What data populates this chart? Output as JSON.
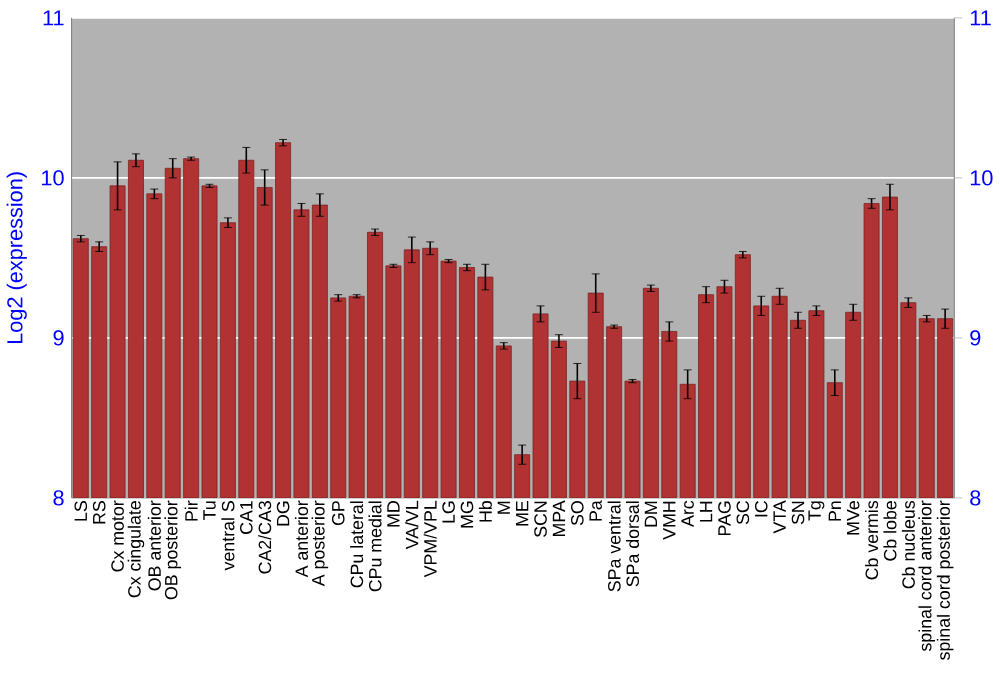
{
  "chart_data": {
    "type": "bar",
    "ylabel": "Log2 (expression)",
    "categories": [
      "LS",
      "RS",
      "Cx motor",
      "Cx cingulate",
      "OB anterior",
      "OB posterior",
      "Pir",
      "Tu",
      "ventral S",
      "CA1",
      "CA2/CA3",
      "DG",
      "A anterior",
      "A posterior",
      "GP",
      "CPu lateral",
      "CPu medial",
      "MD",
      "VA/VL",
      "VPM/VPL",
      "LG",
      "MG",
      "Hb",
      "M",
      "ME",
      "SCN",
      "MPA",
      "SO",
      "Pa",
      "SPa ventral",
      "SPa dorsal",
      "DM",
      "VMH",
      "Arc",
      "LH",
      "PAG",
      "SC",
      "IC",
      "VTA",
      "SN",
      "Tg",
      "Pn",
      "MVe",
      "Cb vermis",
      "Cb lobe",
      "Cb nucleus",
      "spinal cord anterior",
      "spinal cord posterior"
    ],
    "values": [
      9.62,
      9.57,
      9.95,
      10.11,
      9.9,
      10.06,
      10.12,
      9.95,
      9.72,
      10.11,
      9.94,
      10.22,
      9.8,
      9.83,
      9.25,
      9.26,
      9.66,
      9.45,
      9.55,
      9.56,
      9.48,
      9.44,
      9.38,
      8.95,
      8.27,
      9.15,
      8.98,
      8.73,
      9.28,
      9.07,
      8.73,
      9.31,
      9.04,
      8.71,
      9.27,
      9.32,
      9.52,
      9.2,
      9.26,
      9.11,
      9.17,
      8.72,
      9.16,
      9.84,
      9.88,
      9.22,
      9.12,
      9.12
    ],
    "errors": [
      0.02,
      0.03,
      0.15,
      0.04,
      0.03,
      0.06,
      0.01,
      0.01,
      0.03,
      0.08,
      0.11,
      0.02,
      0.04,
      0.07,
      0.02,
      0.01,
      0.02,
      0.01,
      0.08,
      0.04,
      0.01,
      0.02,
      0.08,
      0.02,
      0.06,
      0.05,
      0.04,
      0.11,
      0.12,
      0.01,
      0.01,
      0.02,
      0.06,
      0.09,
      0.05,
      0.04,
      0.02,
      0.06,
      0.05,
      0.05,
      0.03,
      0.08,
      0.05,
      0.03,
      0.08,
      0.03,
      0.02,
      0.06
    ],
    "color": "#b03232",
    "ylim": [
      8,
      11
    ],
    "yticks": [
      8,
      9,
      10,
      11
    ],
    "y2lim": [
      8,
      11
    ],
    "y2ticks": [
      8,
      9,
      10,
      11
    ],
    "grid": "y"
  }
}
